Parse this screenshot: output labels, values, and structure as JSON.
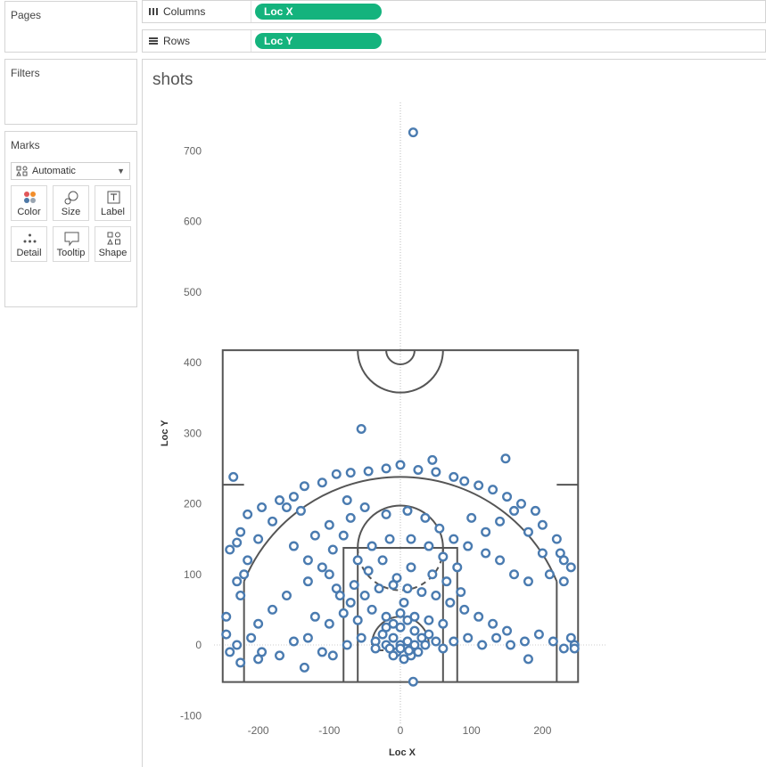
{
  "shelves": {
    "pages_label": "Pages",
    "filters_label": "Filters",
    "marks_label": "Marks",
    "columns_label": "Columns",
    "rows_label": "Rows",
    "columns_pill": "Loc X",
    "rows_pill": "Loc Y"
  },
  "marks": {
    "mark_type": "Automatic",
    "buttons": [
      {
        "label": "Color",
        "icon": "color-icon"
      },
      {
        "label": "Size",
        "icon": "size-icon"
      },
      {
        "label": "Label",
        "icon": "label-icon"
      },
      {
        "label": "Detail",
        "icon": "detail-icon"
      },
      {
        "label": "Tooltip",
        "icon": "tooltip-icon"
      },
      {
        "label": "Shape",
        "icon": "shape-icon"
      }
    ]
  },
  "colors": {
    "pill": "#14b37d",
    "mark": "#4a7bb0",
    "court": "#555555"
  },
  "chart_data": {
    "type": "scatter",
    "title": "shots",
    "xlabel": "Loc X",
    "ylabel": "Loc Y",
    "xlim": [
      -250,
      250
    ],
    "ylim": [
      -100,
      720
    ],
    "x_ticks": [
      -200,
      -100,
      0,
      100,
      200
    ],
    "y_ticks": [
      -100,
      0,
      100,
      200,
      300,
      400,
      500,
      600,
      700
    ],
    "marker": "open-circle",
    "background": "basketball half court",
    "points": [
      [
        18,
        726
      ],
      [
        -55,
        306
      ],
      [
        -235,
        238
      ],
      [
        148,
        264
      ],
      [
        45,
        262
      ],
      [
        0,
        255
      ],
      [
        -20,
        250
      ],
      [
        -45,
        246
      ],
      [
        -70,
        244
      ],
      [
        -90,
        242
      ],
      [
        25,
        248
      ],
      [
        50,
        245
      ],
      [
        75,
        238
      ],
      [
        90,
        232
      ],
      [
        -110,
        230
      ],
      [
        -135,
        225
      ],
      [
        110,
        226
      ],
      [
        130,
        220
      ],
      [
        150,
        210
      ],
      [
        170,
        200
      ],
      [
        -150,
        210
      ],
      [
        -170,
        205
      ],
      [
        -195,
        195
      ],
      [
        -215,
        185
      ],
      [
        190,
        190
      ],
      [
        200,
        170
      ],
      [
        220,
        150
      ],
      [
        -225,
        160
      ],
      [
        -230,
        145
      ],
      [
        -240,
        135
      ],
      [
        225,
        130
      ],
      [
        230,
        120
      ],
      [
        240,
        110
      ],
      [
        -220,
        100
      ],
      [
        -225,
        70
      ],
      [
        -160,
        70
      ],
      [
        -130,
        90
      ],
      [
        -110,
        110
      ],
      [
        -95,
        135
      ],
      [
        -80,
        155
      ],
      [
        -70,
        180
      ],
      [
        -75,
        205
      ],
      [
        -50,
        195
      ],
      [
        -20,
        185
      ],
      [
        10,
        190
      ],
      [
        35,
        180
      ],
      [
        55,
        165
      ],
      [
        75,
        150
      ],
      [
        95,
        140
      ],
      [
        120,
        130
      ],
      [
        140,
        120
      ],
      [
        160,
        100
      ],
      [
        180,
        90
      ],
      [
        -150,
        140
      ],
      [
        -130,
        120
      ],
      [
        -100,
        100
      ],
      [
        -60,
        120
      ],
      [
        -40,
        140
      ],
      [
        -15,
        150
      ],
      [
        15,
        150
      ],
      [
        40,
        140
      ],
      [
        60,
        125
      ],
      [
        80,
        110
      ],
      [
        -90,
        80
      ],
      [
        -70,
        60
      ],
      [
        -50,
        70
      ],
      [
        -30,
        80
      ],
      [
        -10,
        85
      ],
      [
        10,
        80
      ],
      [
        30,
        75
      ],
      [
        50,
        70
      ],
      [
        70,
        60
      ],
      [
        90,
        50
      ],
      [
        110,
        40
      ],
      [
        130,
        30
      ],
      [
        150,
        20
      ],
      [
        -120,
        40
      ],
      [
        -100,
        30
      ],
      [
        -80,
        45
      ],
      [
        -60,
        35
      ],
      [
        -40,
        50
      ],
      [
        -20,
        40
      ],
      [
        0,
        45
      ],
      [
        20,
        40
      ],
      [
        40,
        35
      ],
      [
        60,
        30
      ],
      [
        -180,
        50
      ],
      [
        -200,
        30
      ],
      [
        -210,
        10
      ],
      [
        -230,
        0
      ],
      [
        -240,
        -10
      ],
      [
        -225,
        -25
      ],
      [
        -195,
        -10
      ],
      [
        -170,
        -15
      ],
      [
        -150,
        5
      ],
      [
        -130,
        10
      ],
      [
        -110,
        -10
      ],
      [
        -95,
        -15
      ],
      [
        -75,
        0
      ],
      [
        -55,
        10
      ],
      [
        -35,
        5
      ],
      [
        -20,
        0
      ],
      [
        -10,
        10
      ],
      [
        0,
        0
      ],
      [
        10,
        5
      ],
      [
        20,
        0
      ],
      [
        30,
        10
      ],
      [
        40,
        15
      ],
      [
        50,
        5
      ],
      [
        60,
        -5
      ],
      [
        75,
        5
      ],
      [
        95,
        10
      ],
      [
        115,
        0
      ],
      [
        135,
        10
      ],
      [
        155,
        0
      ],
      [
        175,
        5
      ],
      [
        195,
        15
      ],
      [
        215,
        5
      ],
      [
        230,
        -5
      ],
      [
        240,
        10
      ],
      [
        245,
        0
      ],
      [
        -245,
        15
      ],
      [
        -5,
        -10
      ],
      [
        5,
        -20
      ],
      [
        15,
        -15
      ],
      [
        -15,
        -5
      ],
      [
        25,
        -10
      ],
      [
        -25,
        15
      ],
      [
        35,
        0
      ],
      [
        -35,
        -5
      ],
      [
        0,
        25
      ],
      [
        -10,
        30
      ],
      [
        10,
        35
      ],
      [
        20,
        20
      ],
      [
        -20,
        25
      ],
      [
        5,
        60
      ],
      [
        -5,
        95
      ],
      [
        15,
        110
      ],
      [
        -25,
        120
      ],
      [
        45,
        100
      ],
      [
        -45,
        105
      ],
      [
        65,
        90
      ],
      [
        -65,
        85
      ],
      [
        85,
        75
      ],
      [
        -85,
        70
      ],
      [
        100,
        180
      ],
      [
        -100,
        170
      ],
      [
        120,
        160
      ],
      [
        -120,
        155
      ],
      [
        140,
        175
      ],
      [
        -140,
        190
      ],
      [
        160,
        190
      ],
      [
        -160,
        195
      ],
      [
        180,
        160
      ],
      [
        -180,
        175
      ],
      [
        200,
        130
      ],
      [
        -200,
        150
      ],
      [
        210,
        100
      ],
      [
        -215,
        120
      ],
      [
        -230,
        90
      ],
      [
        230,
        90
      ],
      [
        -245,
        40
      ],
      [
        245,
        -5
      ],
      [
        18,
        -52
      ],
      [
        -135,
        -32
      ],
      [
        -200,
        -20
      ],
      [
        180,
        -20
      ],
      [
        -10,
        -15
      ],
      [
        0,
        -5
      ],
      [
        12,
        -8
      ]
    ]
  }
}
